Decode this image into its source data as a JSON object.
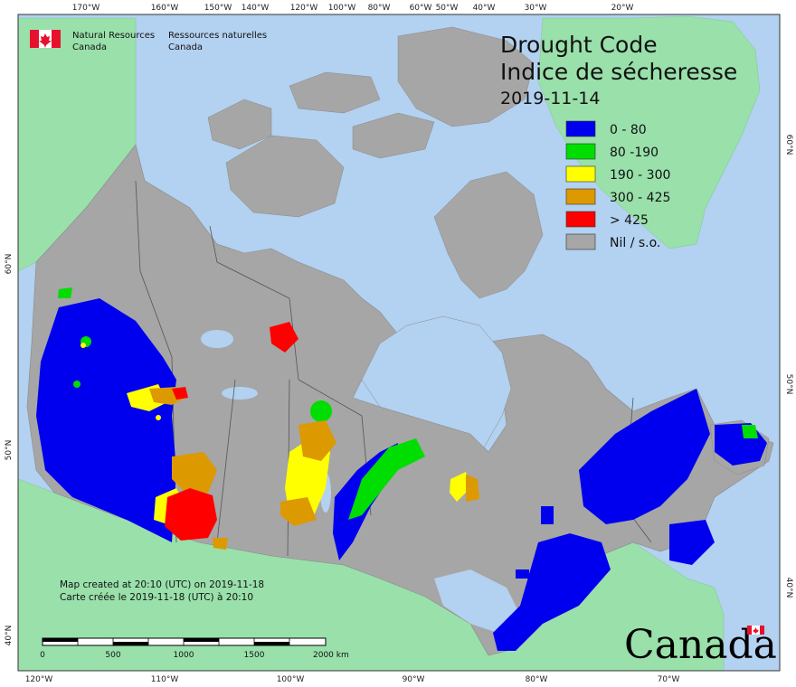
{
  "title_en": "Drought Code",
  "title_fr": "Indice de sécheresse",
  "date": "2019-11-14",
  "legend": [
    {
      "label": "0 - 80",
      "color": "#0000ee"
    },
    {
      "label": "80 -190",
      "color": "#00dd00"
    },
    {
      "label": "190 - 300",
      "color": "#ffff00"
    },
    {
      "label": "300 - 425",
      "color": "#dd9900"
    },
    {
      "label": "> 425",
      "color": "#ff0000"
    },
    {
      "label": "Nil / s.o.",
      "color": "#a6a6a6"
    }
  ],
  "org": {
    "en_line1": "Natural Resources",
    "en_line2": "Canada",
    "fr_line1": "Ressources naturelles",
    "fr_line2": "Canada"
  },
  "note_en": "Map created at 20:10 (UTC) on 2019-11-18",
  "note_fr": "Carte créée le 2019-11-18 (UTC) à 20:10",
  "scale_labels": [
    "0",
    "500",
    "1000",
    "1500",
    "2000  km"
  ],
  "wordmark": "Canada",
  "top_longitudes": [
    "170°W",
    "160°W",
    "150°W",
    "140°W",
    "120°W",
    "100°W",
    "80°W",
    "60°W",
    "50°W",
    "40°W",
    "30°W",
    "20°W"
  ],
  "bottom_longitudes": [
    "120°W",
    "110°W",
    "100°W",
    "90°W",
    "80°W",
    "70°W"
  ],
  "left_latitudes": [
    "60°N",
    "50°N",
    "40°N"
  ],
  "right_latitudes": [
    "60°N",
    "50°N",
    "40°N"
  ],
  "colors": {
    "ocean": "#b3d1f0",
    "land_other": "#99e0aa",
    "nil": "#a6a6a6"
  }
}
